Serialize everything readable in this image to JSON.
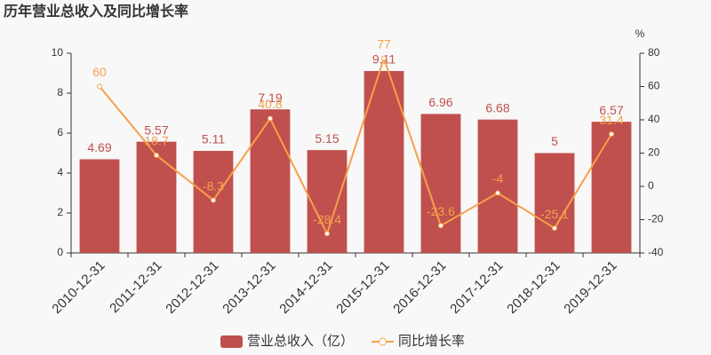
{
  "chart_data": {
    "type": "bar",
    "title": "历年营业总收入及同比增长率",
    "categories": [
      "2010-12-31",
      "2011-12-31",
      "2012-12-31",
      "2013-12-31",
      "2014-12-31",
      "2015-12-31",
      "2016-12-31",
      "2017-12-31",
      "2018-12-31",
      "2019-12-31"
    ],
    "series": [
      {
        "name": "营业总收入（亿）",
        "type": "bar",
        "color": "#c0504d",
        "values": [
          4.69,
          5.57,
          5.11,
          7.19,
          5.15,
          9.11,
          6.96,
          6.68,
          5,
          6.57
        ]
      },
      {
        "name": "同比增长率",
        "type": "line",
        "axis": "y2",
        "color": "#f5a04a",
        "values": [
          60,
          18.7,
          -8.3,
          40.8,
          -28.4,
          77,
          -23.6,
          -4,
          -25.1,
          31.4
        ]
      }
    ],
    "ylim": [
      0,
      10
    ],
    "yticks": [
      0,
      2,
      4,
      6,
      8,
      10
    ],
    "y2lim": [
      -40,
      80
    ],
    "y2ticks": [
      -40,
      -20,
      0,
      20,
      40,
      60,
      80
    ],
    "y2label": "%",
    "legend": "bottom"
  }
}
